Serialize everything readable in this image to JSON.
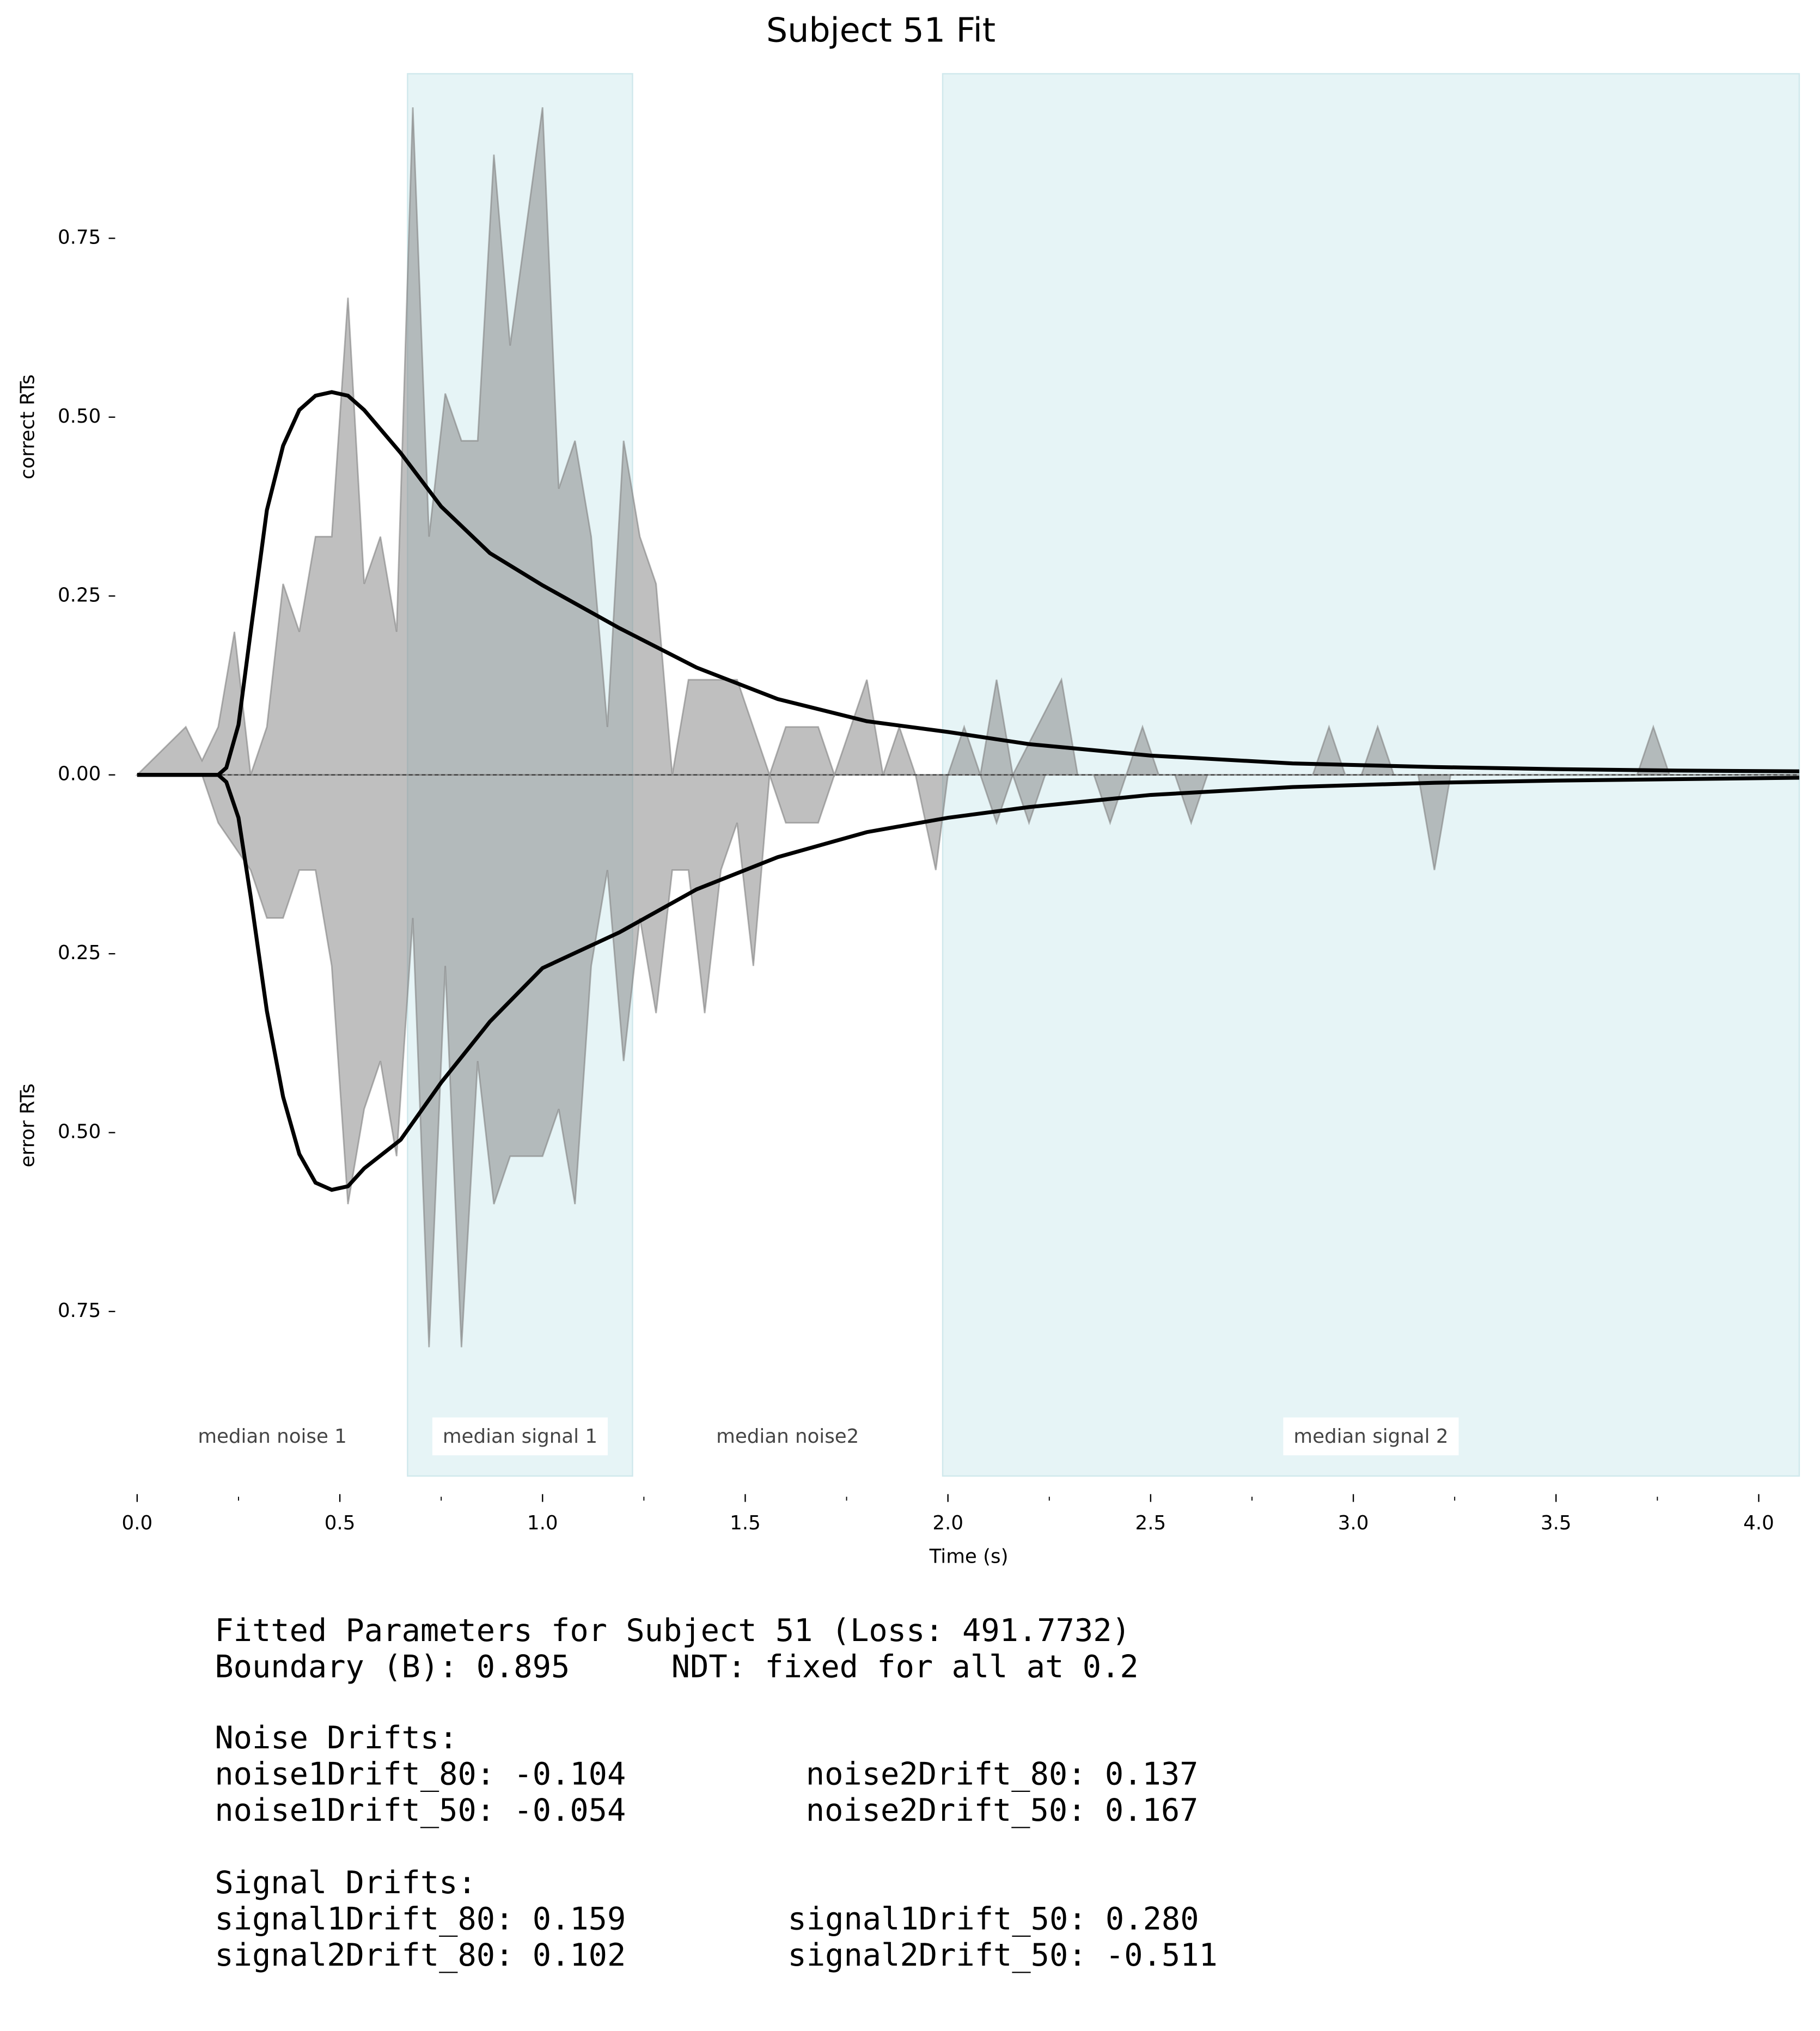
{
  "chart_data": {
    "type": "rt-distribution",
    "title": "Subject 51 Fit",
    "xlabel": "Time (s)",
    "ylabel_top": "correct RTs",
    "ylabel_bottom": "error RTs",
    "xlim": [
      0,
      4.1
    ],
    "ylim": [
      -0.98,
      0.98
    ],
    "xticks": [
      {
        "value": 0,
        "label": "0.0"
      },
      0.5,
      {
        "value": 1,
        "label": "1.0"
      },
      1.5,
      {
        "value": 2,
        "label": "2.0"
      },
      2.5,
      {
        "value": 3,
        "label": "3.0"
      },
      3.5,
      {
        "value": 4,
        "label": "4.0"
      }
    ],
    "xticks_minor": [
      0.25,
      0.75,
      1.25,
      1.75,
      2.25,
      2.75,
      3.25,
      3.75
    ],
    "yticks": [
      {
        "value": -0.75,
        "label": "0.75"
      },
      {
        "value": -0.5,
        "label": "0.50"
      },
      {
        "value": -0.25,
        "label": "0.25"
      },
      {
        "value": 0,
        "label": "0.00"
      },
      0.25,
      {
        "value": 0.5,
        "label": "0.50"
      },
      0.75
    ],
    "regions": [
      {
        "label": "median noise 1",
        "xlim": [
          0,
          0.667
        ],
        "shaded": false
      },
      {
        "label": "median signal 1",
        "xlim": [
          0.667,
          1.222
        ],
        "shaded": true
      },
      {
        "label": "median noise2",
        "xlim": [
          1.222,
          1.987
        ],
        "shaded": false
      },
      {
        "label": "median signal 2",
        "xlim": [
          1.987,
          4.1
        ],
        "shaded": true
      }
    ],
    "region_color": "#e6f4f6",
    "areas": [
      {
        "color": "#808080",
        "x": [
          0,
          0.12,
          0.16,
          0.2,
          0.24,
          0.28,
          0.32,
          0.36,
          0.4,
          0.44,
          0.48,
          0.52,
          0.56,
          0.6,
          0.64,
          0.68,
          0.72,
          0.76,
          0.8,
          0.84,
          0.88,
          0.92,
          1.0,
          1.04,
          1.08,
          1.12,
          1.16,
          1.2,
          1.24,
          1.28,
          1.32,
          1.36,
          1.48,
          1.56,
          1.6,
          1.68,
          1.72,
          1.8,
          1.84,
          1.88,
          1.92,
          2.0,
          2.04,
          2.08,
          2.12,
          2.16,
          2.28,
          2.32,
          2.44,
          2.48,
          2.52,
          2.9,
          2.94,
          2.98,
          3.02,
          3.06,
          3.1,
          3.7,
          3.74,
          3.78,
          4.1
        ],
        "values": [
          0,
          0.067,
          0.02,
          0.067,
          0.2,
          0,
          0.067,
          0.267,
          0.2,
          0.333,
          0.333,
          0.667,
          0.267,
          0.333,
          0.2,
          0.933,
          0.333,
          0.533,
          0.467,
          0.467,
          0.867,
          0.6,
          0.933,
          0.4,
          0.467,
          0.333,
          0.067,
          0.467,
          0.333,
          0.267,
          0,
          0.133,
          0.133,
          0,
          0.067,
          0.067,
          0,
          0.133,
          0,
          0.067,
          0,
          0,
          0.067,
          0,
          0.133,
          0,
          0.133,
          0,
          0,
          0.067,
          0,
          0,
          0.067,
          0,
          0,
          0.067,
          0,
          0,
          0.067,
          0,
          0
        ]
      },
      {
        "color": "#808080",
        "x": [
          0,
          0.16,
          0.2,
          0.24,
          0.28,
          0.32,
          0.36,
          0.4,
          0.44,
          0.48,
          0.52,
          0.56,
          0.6,
          0.64,
          0.68,
          0.72,
          0.76,
          0.8,
          0.84,
          0.88,
          0.92,
          1.0,
          1.04,
          1.08,
          1.12,
          1.16,
          1.2,
          1.24,
          1.28,
          1.32,
          1.36,
          1.4,
          1.44,
          1.48,
          1.52,
          1.56,
          1.6,
          1.68,
          1.72,
          1.92,
          1.97,
          2.0,
          2.08,
          2.12,
          2.16,
          2.2,
          2.24,
          2.36,
          2.4,
          2.44,
          2.56,
          2.6,
          2.64,
          3.16,
          3.2,
          3.24,
          4.1
        ],
        "values": [
          0,
          0,
          -0.067,
          -0.1,
          -0.133,
          -0.2,
          -0.2,
          -0.133,
          -0.133,
          -0.267,
          -0.6,
          -0.467,
          -0.4,
          -0.533,
          -0.2,
          -0.8,
          -0.267,
          -0.8,
          -0.4,
          -0.6,
          -0.533,
          -0.533,
          -0.467,
          -0.6,
          -0.267,
          -0.133,
          -0.4,
          -0.2,
          -0.333,
          -0.133,
          -0.133,
          -0.333,
          -0.133,
          -0.067,
          -0.267,
          0,
          -0.067,
          -0.067,
          0,
          0,
          -0.133,
          0,
          0,
          -0.067,
          0,
          -0.067,
          0,
          0,
          -0.067,
          0,
          0,
          -0.067,
          0,
          0,
          -0.133,
          0,
          0
        ]
      }
    ],
    "lines": [
      {
        "color": "#000000",
        "x": [
          0,
          0.2,
          0.22,
          0.25,
          0.28,
          0.32,
          0.36,
          0.4,
          0.44,
          0.48,
          0.52,
          0.56,
          0.65,
          0.75,
          0.87,
          1.0,
          1.19,
          1.38,
          1.58,
          1.8,
          2.0,
          2.2,
          2.5,
          2.85,
          3.2,
          3.5,
          3.8,
          4.1
        ],
        "values": [
          0,
          0,
          0.01,
          0.07,
          0.2,
          0.37,
          0.46,
          0.51,
          0.53,
          0.535,
          0.53,
          0.51,
          0.45,
          0.375,
          0.31,
          0.265,
          0.205,
          0.15,
          0.106,
          0.075,
          0.06,
          0.043,
          0.027,
          0.016,
          0.011,
          0.008,
          0.006,
          0.005
        ]
      },
      {
        "color": "#000000",
        "x": [
          0,
          0.2,
          0.22,
          0.25,
          0.28,
          0.32,
          0.36,
          0.4,
          0.44,
          0.48,
          0.52,
          0.56,
          0.65,
          0.75,
          0.87,
          1.0,
          1.19,
          1.38,
          1.58,
          1.8,
          2.0,
          2.2,
          2.5,
          2.85,
          3.2,
          3.5,
          3.8,
          4.1
        ],
        "values": [
          0,
          0,
          -0.01,
          -0.06,
          -0.17,
          -0.33,
          -0.45,
          -0.53,
          -0.57,
          -0.58,
          -0.575,
          -0.55,
          -0.51,
          -0.43,
          -0.345,
          -0.27,
          -0.22,
          -0.16,
          -0.115,
          -0.08,
          -0.06,
          -0.045,
          -0.028,
          -0.017,
          -0.011,
          -0.008,
          -0.006,
          -0.004
        ]
      }
    ]
  },
  "parameters": {
    "title": "Fitted Parameters for Subject 51 (Loss: 491.7732)",
    "boundary": "Boundary (B): 0.895",
    "ndt": "NDT: fixed for all at 0.2",
    "noise_heading": "Noise Drifts:",
    "noise_rows": [
      [
        "noise1Drift_80: -0.104",
        "noise2Drift_80: 0.137"
      ],
      [
        "noise1Drift_50: -0.054",
        "noise2Drift_50: 0.167"
      ]
    ],
    "signal_heading": "Signal Drifts:",
    "signal_rows": [
      [
        "signal1Drift_80: 0.159",
        "signal1Drift_50: 0.280"
      ],
      [
        "signal2Drift_80: 0.102",
        "signal2Drift_50: -0.511"
      ]
    ]
  }
}
